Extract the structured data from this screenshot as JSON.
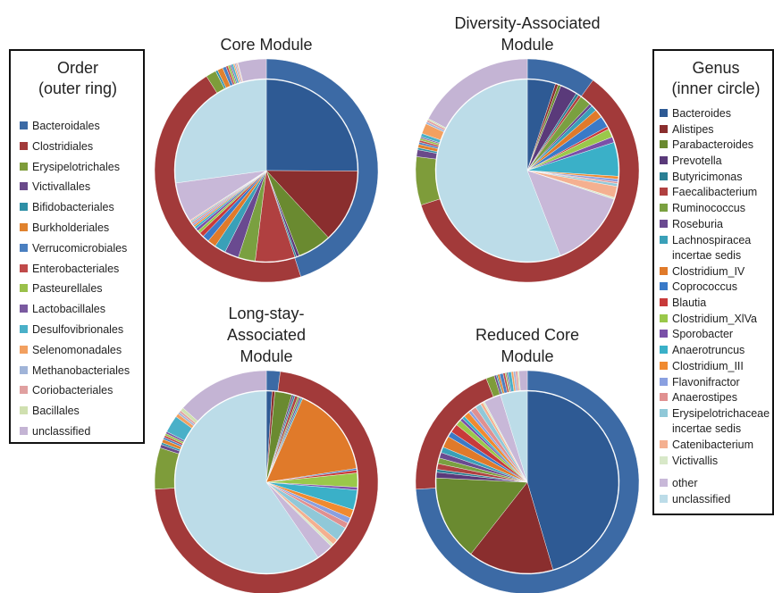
{
  "legends": [
    {
      "title": "Order\n(outer ring)",
      "entries": [
        {
          "name": "Bacteroidales",
          "color": "#3c6aa5"
        },
        {
          "name": "Clostridiales",
          "color": "#a23a3a"
        },
        {
          "name": "Erysipelotrichales",
          "color": "#7e9c3a"
        },
        {
          "name": "Victivallales",
          "color": "#6a4a8a"
        },
        {
          "name": "Bifidobacteriales",
          "color": "#2e8fa6"
        },
        {
          "name": "Burkholderiales",
          "color": "#e0822e"
        },
        {
          "name": "Verrucomicrobiales",
          "color": "#4a7fc0"
        },
        {
          "name": "Enterobacteriales",
          "color": "#c04a4a"
        },
        {
          "name": "Pasteurellales",
          "color": "#9ac04a"
        },
        {
          "name": "Lactobacillales",
          "color": "#7a5aa0"
        },
        {
          "name": "Desulfovibrionales",
          "color": "#4ab0c8"
        },
        {
          "name": "Selenomonadales",
          "color": "#f2a060"
        },
        {
          "name": "Methanobacteriales",
          "color": "#a0b4d8"
        },
        {
          "name": "Coriobacteriales",
          "color": "#e0a0a0"
        },
        {
          "name": "Bacillales",
          "color": "#d0e0b0"
        },
        {
          "name": "unclassified",
          "color": "#c4b4d4"
        }
      ]
    },
    {
      "title": "Genus\n(inner circle)",
      "entries": [
        {
          "name": "Bacteroides",
          "color": "#2e5a94"
        },
        {
          "name": "Alistipes",
          "color": "#8a2e2e"
        },
        {
          "name": "Parabacteroides",
          "color": "#6a8a30"
        },
        {
          "name": "Prevotella",
          "color": "#5a3a7a"
        },
        {
          "name": "Butyricimonas",
          "color": "#2a7f94"
        },
        {
          "name": "Faecalibacterium",
          "color": "#b04040"
        },
        {
          "name": "Ruminococcus",
          "color": "#7aa040"
        },
        {
          "name": "Roseburia",
          "color": "#6a4a90"
        },
        {
          "name": "Lachnospiracea\n      incertae sedis",
          "color": "#3aa0b8"
        },
        {
          "name": "Clostridium_IV",
          "color": "#e07a2a"
        },
        {
          "name": "Coprococcus",
          "color": "#3a7ac8"
        },
        {
          "name": "Blautia",
          "color": "#c83a3a"
        },
        {
          "name": "Clostridium_XlVa",
          "color": "#9ac84a"
        },
        {
          "name": "Sporobacter",
          "color": "#7a50a8"
        },
        {
          "name": "Anaerotruncus",
          "color": "#3ab0c8"
        },
        {
          "name": "Clostridium_III",
          "color": "#f08a30"
        },
        {
          "name": "Flavonifractor",
          "color": "#8aa0e0"
        },
        {
          "name": "Anaerostipes",
          "color": "#e09090"
        },
        {
          "name": "Erysipelotrichaceae\n      incertae sedis",
          "color": "#90c8d8"
        },
        {
          "name": "Catenibacterium",
          "color": "#f4b090"
        },
        {
          "name": "Victivallis",
          "color": "#d8e8c8"
        },
        {
          "name": "other",
          "color": "#c8b8d8"
        },
        {
          "name": "unclassified",
          "color": "#bcdce8"
        }
      ]
    }
  ],
  "chart_data": [
    {
      "type": "pie",
      "title": "Core Module",
      "outer_values": [
        45,
        46,
        1.5,
        0,
        0.3,
        0.8,
        0.5,
        0.3,
        0.3,
        0.2,
        0.3,
        0.2,
        0.2,
        0.2,
        0.1,
        4.1
      ],
      "inner_values": [
        25,
        13,
        6,
        0.5,
        0.3,
        7,
        3,
        2.5,
        2,
        1.5,
        1.2,
        0.8,
        0.5,
        0.5,
        0.4,
        0.3,
        0.3,
        0.3,
        0.3,
        0.2,
        0,
        7,
        27.1
      ]
    },
    {
      "type": "pie",
      "title": "Diversity-Associated\nModule",
      "outer_values": [
        10,
        60,
        7,
        1,
        0.3,
        0.5,
        0.3,
        0.3,
        0.3,
        0.2,
        0.5,
        1.5,
        0.3,
        0.3,
        0.2,
        17.3
      ],
      "inner_values": [
        5,
        0.5,
        0.5,
        3,
        0.5,
        0.5,
        2,
        0.5,
        1,
        1.5,
        2,
        0.5,
        1.5,
        1,
        6,
        0.5,
        0.5,
        0.3,
        0.5,
        2,
        0.3,
        14,
        55.9
      ]
    },
    {
      "type": "pie",
      "title": "Long-stay-\nAssociated\nModule",
      "outer_values": [
        2,
        72,
        6,
        0.5,
        0.3,
        0.5,
        0.3,
        0.3,
        0.3,
        0.3,
        2.5,
        0.5,
        0.3,
        0.3,
        0.5,
        13.4
      ],
      "inner_values": [
        1,
        0.5,
        3,
        0.3,
        0.3,
        0.5,
        0.3,
        0.3,
        0.3,
        16,
        0.3,
        0.5,
        2.5,
        0.5,
        3.5,
        1.5,
        1,
        1,
        2.5,
        1,
        0.5,
        3,
        59.4
      ]
    },
    {
      "type": "pie",
      "title": "Reduced Core\nModule",
      "outer_values": [
        74,
        20,
        1.2,
        0.3,
        0.2,
        0.3,
        0.5,
        0.3,
        0.2,
        0.2,
        0.5,
        0.3,
        0.3,
        0.3,
        0.2,
        1.2
      ],
      "inner_values": [
        45,
        15,
        15,
        1,
        0.5,
        1,
        1,
        1,
        1,
        2,
        1,
        1.5,
        1,
        0.5,
        0.5,
        1,
        0.5,
        1,
        1,
        0.5,
        0.3,
        3,
        4.7
      ]
    }
  ]
}
